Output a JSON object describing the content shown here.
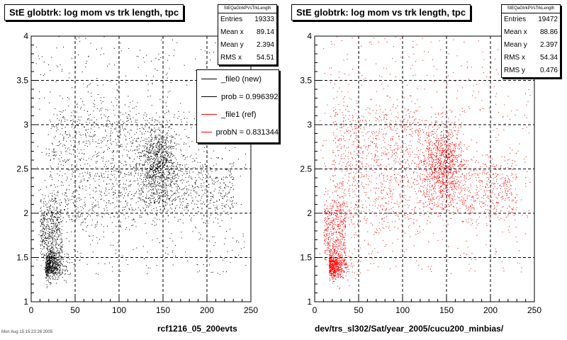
{
  "chart_data": [
    {
      "type": "scatter",
      "title": "StE globtrk: log mom vs trk length, tpc",
      "xlabel": "rcf1216_05_200evts",
      "ylabel": "",
      "xlim": [
        0,
        250
      ],
      "ylim": [
        1,
        4
      ],
      "xticks": [
        "0",
        "50",
        "100",
        "150",
        "200",
        "250"
      ],
      "yticks": [
        "1",
        "1.5",
        "2",
        "2.5",
        "3",
        "3.5",
        "4"
      ],
      "grid": true,
      "color": "#000000",
      "clusters": [
        {
          "x": 18,
          "y": 1.42,
          "note": "dense cluster"
        },
        {
          "x": 22,
          "y": 2.0
        },
        {
          "x": 60,
          "y": 2.5
        },
        {
          "x": 145,
          "y": 2.6
        },
        {
          "x": 160,
          "y": 2.2
        }
      ],
      "stats": {
        "header": "StEQaGtrkPVsTrkLength",
        "rows": [
          {
            "label": "Entries",
            "value": "19333"
          },
          {
            "label": "Mean x",
            "value": "89.14"
          },
          {
            "label": "Mean y",
            "value": "2.394"
          },
          {
            "label": "RMS x",
            "value": "54.51"
          }
        ]
      },
      "legend": {
        "placement": "top-right",
        "entries": [
          {
            "label": "_file0 (new)",
            "color": "#000000"
          },
          {
            "label": "prob = 0.996392",
            "color": "#000000"
          },
          {
            "label": "_file1 (ref)",
            "color": "#ff0000"
          },
          {
            "label": "probN = 0.831344",
            "color": "#ff0000"
          }
        ]
      }
    },
    {
      "type": "scatter",
      "title": "StE globtrk: log mom vs trk length, tpc",
      "xlabel": "dev/trs_sl302/Sat/year_2005/cucu200_minbias/",
      "ylabel": "",
      "xlim": [
        0,
        250
      ],
      "ylim": [
        1,
        4
      ],
      "xticks": [
        "0",
        "50",
        "100",
        "150",
        "200",
        "250"
      ],
      "yticks": [
        "1",
        "1.5",
        "2",
        "2.5",
        "3",
        "3.5",
        "4"
      ],
      "grid": true,
      "color": "#ff0000",
      "clusters": [
        {
          "x": 18,
          "y": 1.42
        },
        {
          "x": 22,
          "y": 2.0
        },
        {
          "x": 60,
          "y": 2.5
        },
        {
          "x": 145,
          "y": 2.6
        },
        {
          "x": 170,
          "y": 2.2
        }
      ],
      "stats": {
        "header": "StEQaGtrkPVsTrkLength",
        "rows": [
          {
            "label": "Entries",
            "value": "19472"
          },
          {
            "label": "Mean x",
            "value": "88.86"
          },
          {
            "label": "Mean y",
            "value": "2.397"
          },
          {
            "label": "RMS x",
            "value": "54.34"
          },
          {
            "label": "RMS y",
            "value": "0.476"
          }
        ]
      }
    }
  ],
  "footer_text": "Mon Aug 15 15:23:26 2005"
}
